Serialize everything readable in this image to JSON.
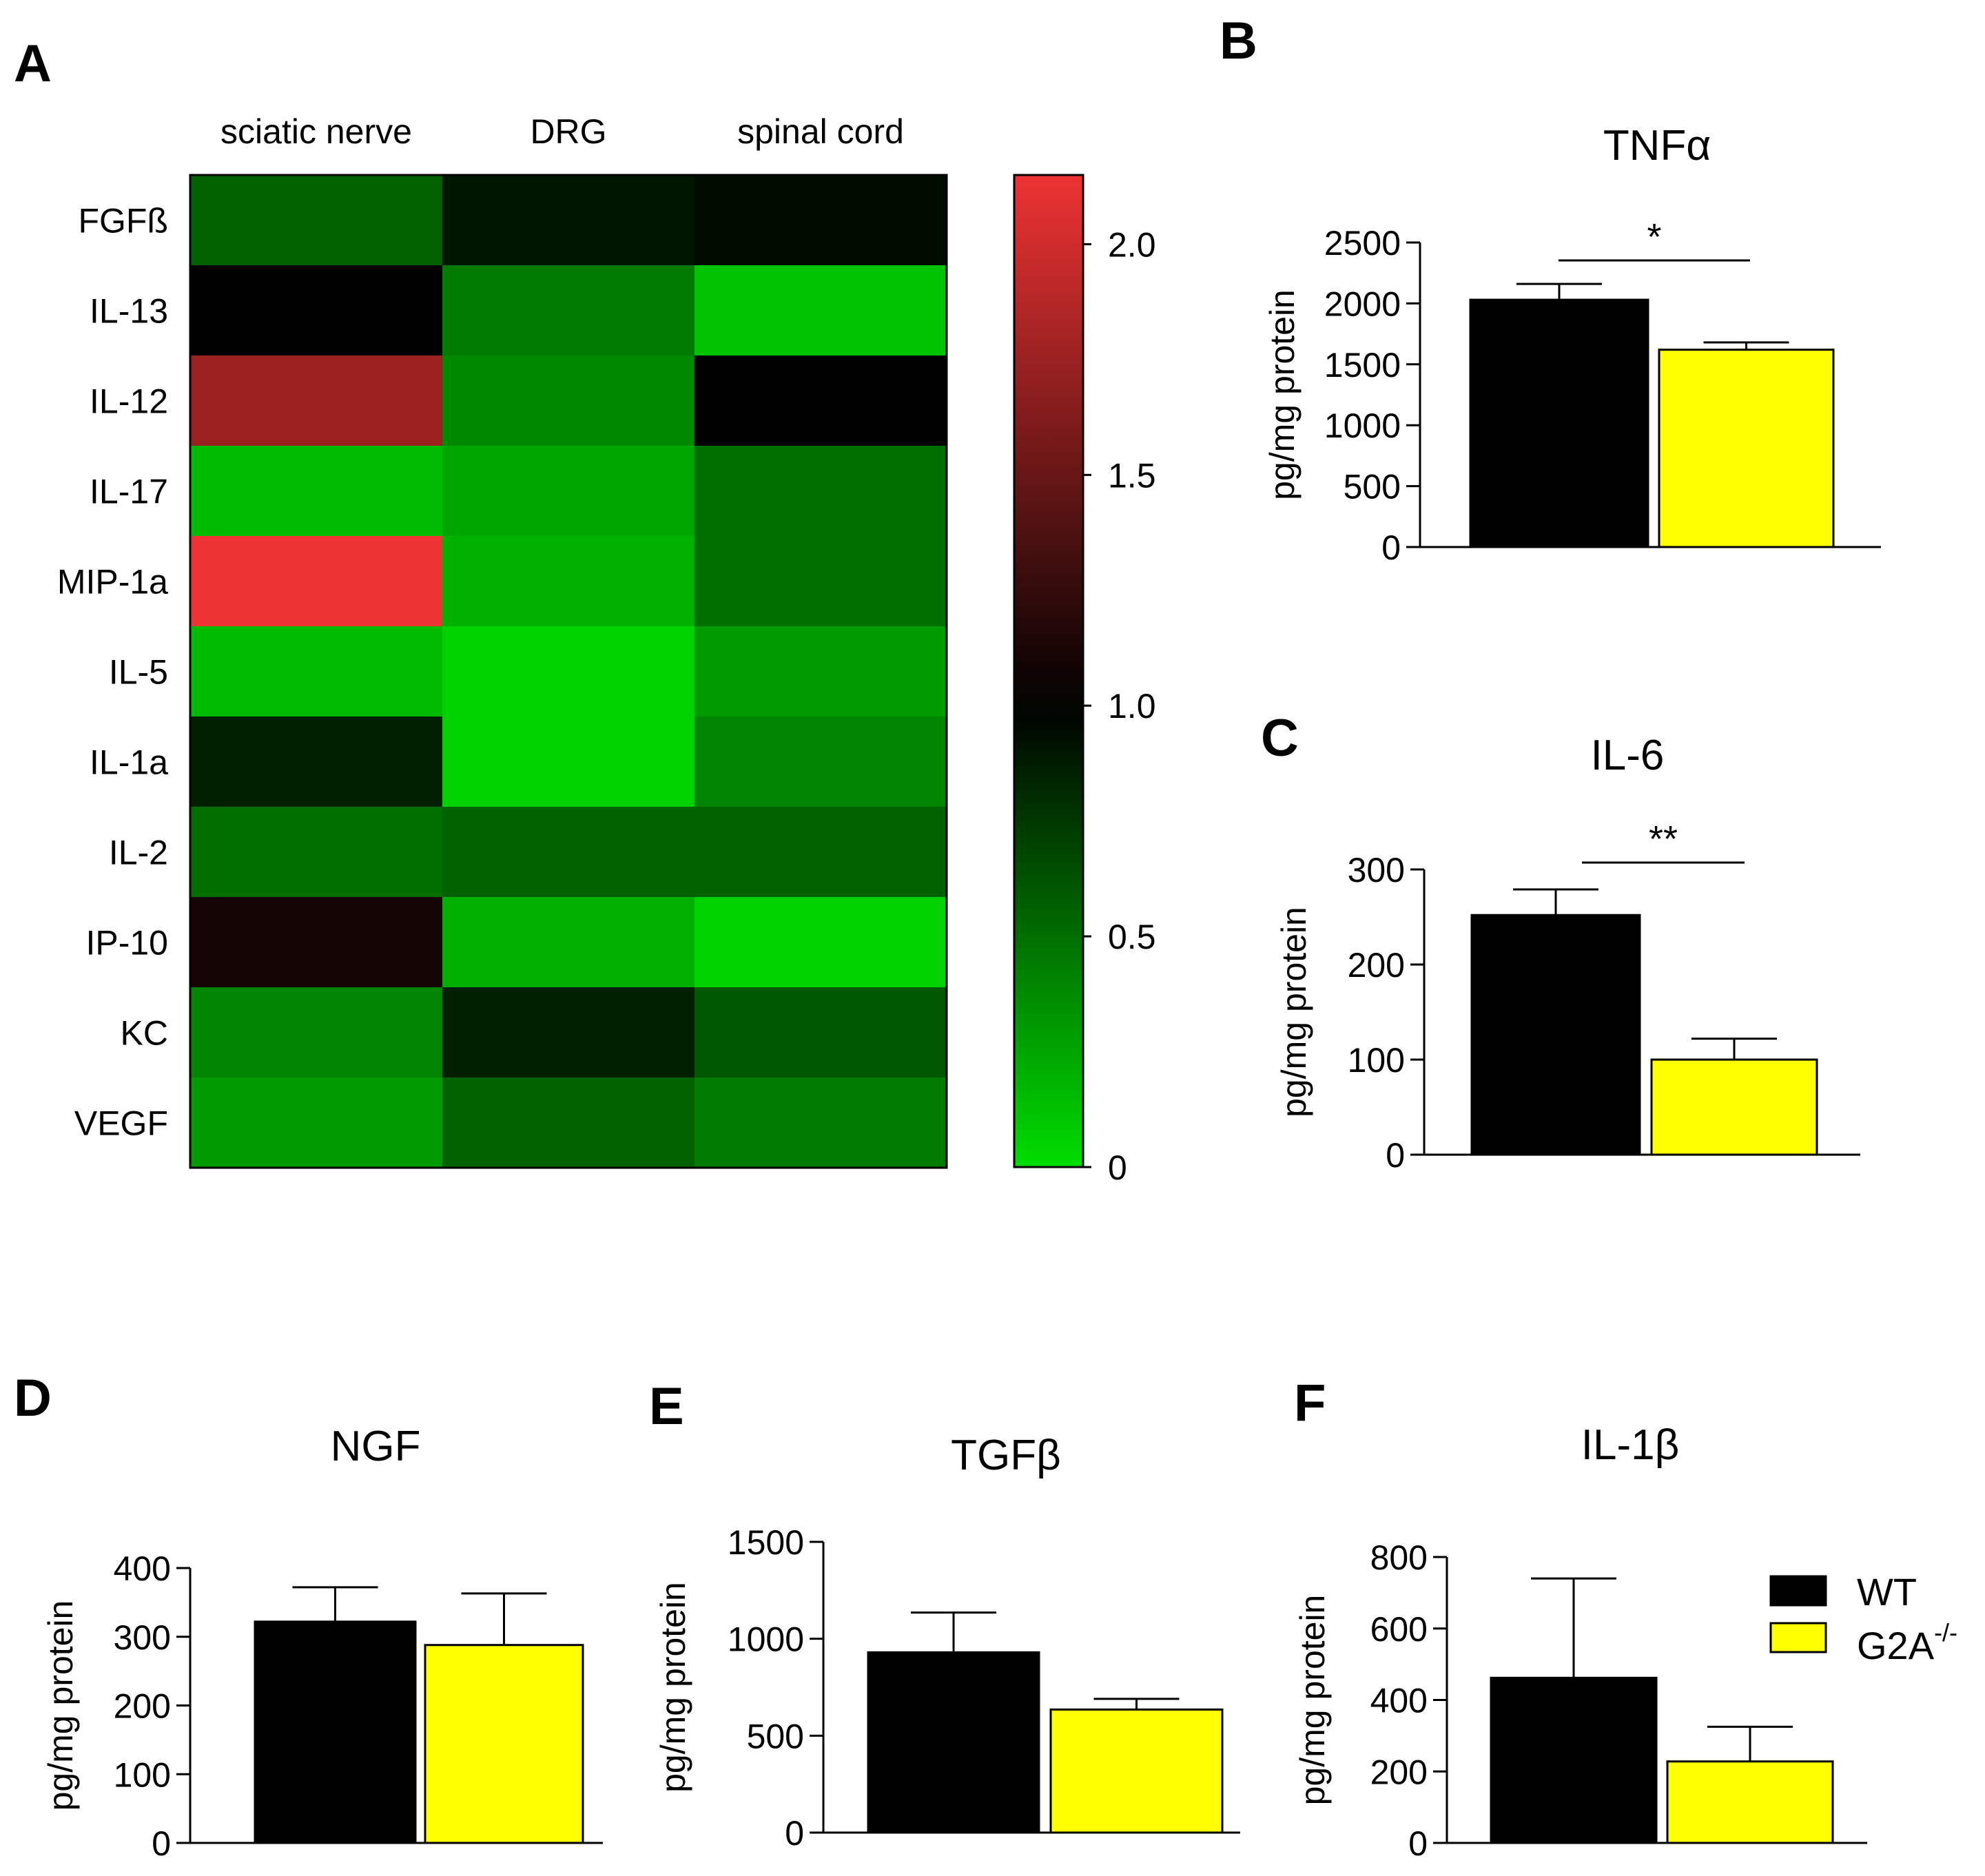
{
  "chart_data": [
    {
      "panel": "A",
      "type": "heatmap",
      "columns": [
        "sciatic nerve",
        "DRG",
        "spinal cord"
      ],
      "rows": [
        "FGFß",
        "IL-13",
        "IL-12",
        "IL-17",
        "MIP-1a",
        "IL-5",
        "IL-1a",
        "IL-2",
        "IP-10",
        "KC",
        "VEGF"
      ],
      "values": [
        [
          0.55,
          0.9,
          0.95
        ],
        [
          1.0,
          0.45,
          0.12
        ],
        [
          1.75,
          0.38,
          1.0
        ],
        [
          0.15,
          0.25,
          0.5
        ],
        [
          2.15,
          0.2,
          0.5
        ],
        [
          0.15,
          0.05,
          0.3
        ],
        [
          0.85,
          0.05,
          0.4
        ],
        [
          0.5,
          0.55,
          0.55
        ],
        [
          1.1,
          0.2,
          0.05
        ],
        [
          0.4,
          0.85,
          0.6
        ],
        [
          0.3,
          0.55,
          0.45
        ]
      ],
      "colorbar": {
        "min": 0,
        "max": 2.15,
        "ticks": [
          "0",
          "0.5",
          "1.0",
          "1.5",
          "2.0"
        ],
        "tick_values": [
          0,
          0.5,
          1.0,
          1.5,
          2.0
        ]
      },
      "colors": {
        "low": "#00dd00",
        "mid": "#000000",
        "high": "#ee3333"
      }
    },
    {
      "panel": "B",
      "type": "bar",
      "title": "TNFα",
      "ylabel": "pg/mg protein",
      "categories": [
        "WT",
        "G2A-/-"
      ],
      "values": [
        2030,
        1620
      ],
      "errors": [
        130,
        60
      ],
      "ylim": [
        0,
        2500
      ],
      "yticks": [
        "0",
        "500",
        "1000",
        "1500",
        "2000",
        "2500"
      ],
      "ytick_values": [
        0,
        500,
        1000,
        1500,
        2000,
        2500
      ],
      "significance": "*"
    },
    {
      "panel": "C",
      "type": "bar",
      "title": "IL-6",
      "ylabel": "pg/mg protein",
      "categories": [
        "WT",
        "G2A-/-"
      ],
      "values": [
        252,
        100
      ],
      "errors": [
        27,
        22
      ],
      "ylim": [
        0,
        300
      ],
      "yticks": [
        "0",
        "100",
        "200",
        "300"
      ],
      "ytick_values": [
        0,
        100,
        200,
        300
      ],
      "significance": "**"
    },
    {
      "panel": "D",
      "type": "bar",
      "title": "NGF",
      "ylabel": "pg/mg protein",
      "categories": [
        "WT",
        "G2A-/-"
      ],
      "values": [
        322,
        288
      ],
      "errors": [
        50,
        75
      ],
      "ylim": [
        0,
        400
      ],
      "yticks": [
        "0",
        "100",
        "200",
        "300",
        "400"
      ],
      "ytick_values": [
        0,
        100,
        200,
        300,
        400
      ],
      "significance": ""
    },
    {
      "panel": "E",
      "type": "bar",
      "title": "TGFβ",
      "ylabel": "pg/mg protein",
      "categories": [
        "WT",
        "G2A-/-"
      ],
      "values": [
        930,
        635
      ],
      "errors": [
        205,
        55
      ],
      "ylim": [
        0,
        1500
      ],
      "yticks": [
        "0",
        "500",
        "1000",
        "1500"
      ],
      "ytick_values": [
        0,
        500,
        1000,
        1500
      ],
      "significance": ""
    },
    {
      "panel": "F",
      "type": "bar",
      "title": "IL-1β",
      "ylabel": "pg/mg protein",
      "categories": [
        "WT",
        "G2A-/-"
      ],
      "values": [
        462,
        228
      ],
      "errors": [
        278,
        97
      ],
      "ylim": [
        0,
        800
      ],
      "yticks": [
        "0",
        "200",
        "400",
        "600",
        "800"
      ],
      "ytick_values": [
        0,
        200,
        400,
        600,
        800
      ],
      "significance": ""
    }
  ],
  "legend": {
    "wt_label": "WT",
    "ko_label": "G2A",
    "ko_superscript": "-/-"
  },
  "colors": {
    "wt": "#000000",
    "ko": "#ffff00"
  }
}
